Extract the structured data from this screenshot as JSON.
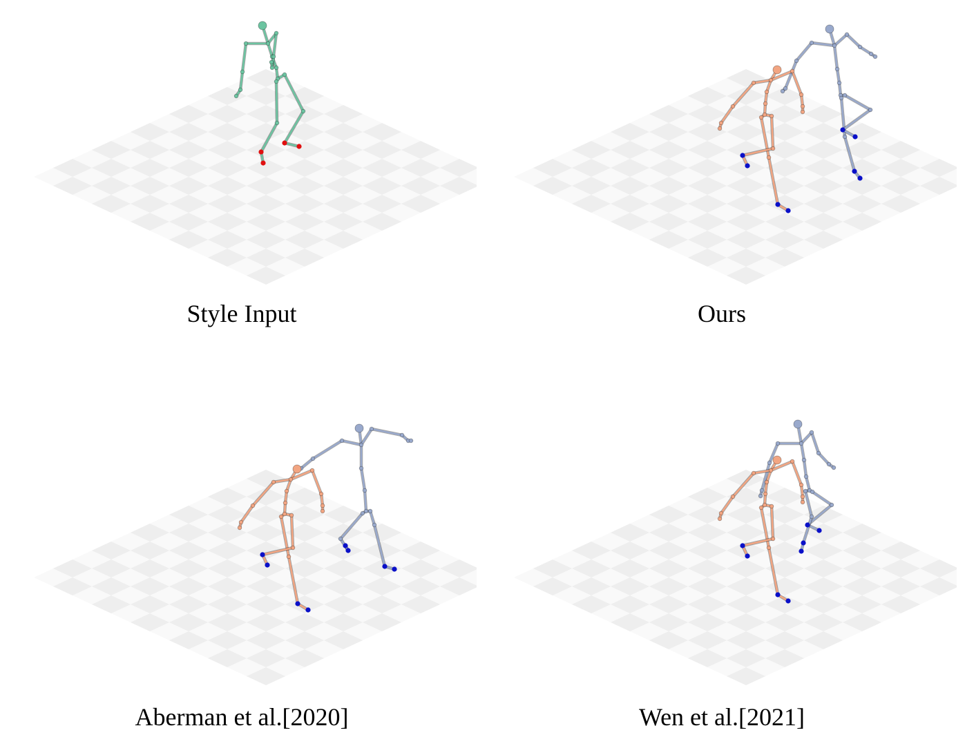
{
  "figure": {
    "panels": [
      {
        "caption": "Style Input",
        "skeletons": [
          "style-input"
        ]
      },
      {
        "caption": "Ours",
        "skeletons": [
          "content",
          "output"
        ]
      },
      {
        "caption": "Aberman et al.[2020]",
        "skeletons": [
          "content",
          "output"
        ]
      },
      {
        "caption": "Wen et al.[2021]",
        "skeletons": [
          "content",
          "output"
        ]
      }
    ]
  },
  "colors": {
    "floor_tile": "#eeeeee",
    "floor_light": "#f9f9f9",
    "style_input_skeleton": "#6cc4a1",
    "content_skeleton": "#f2a582",
    "output_skeleton": "#99a9cc",
    "foot_contact_input": "#e01010",
    "foot_contact_output": "#0a10c8"
  }
}
